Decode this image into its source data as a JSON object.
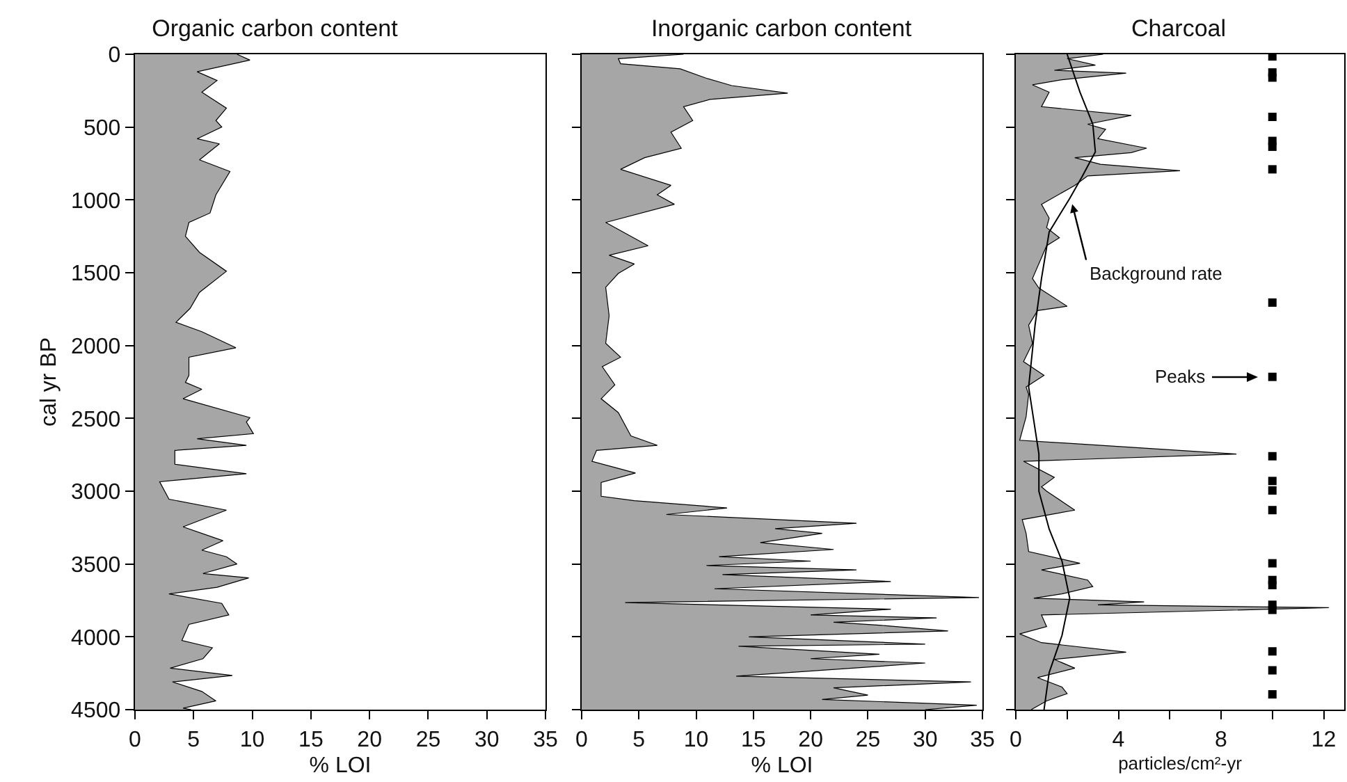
{
  "chart_data": [
    {
      "type": "area",
      "title": "Organic carbon content",
      "xlabel": "% LOI",
      "ylabel": "cal yr BP",
      "orientation": "horizontal",
      "xlim": [
        0,
        35
      ],
      "xticks": [
        0,
        5,
        10,
        15,
        20,
        25,
        30,
        35
      ],
      "ylim": [
        4500,
        0
      ],
      "yticks": [
        0,
        500,
        1000,
        1500,
        2000,
        2500,
        3000,
        3500,
        4000,
        4500
      ],
      "grid": false,
      "legend": false,
      "series": [
        {
          "color": "#a6a6a6",
          "x": [
            0,
            40,
            120,
            180,
            260,
            370,
            455,
            500,
            580,
            615,
            725,
            805,
            965,
            1090,
            1155,
            1250,
            1360,
            1490,
            1635,
            1745,
            1840,
            1905,
            2015,
            2080,
            2205,
            2253,
            2300,
            2365,
            2495,
            2525,
            2605,
            2640,
            2685,
            2720,
            2815,
            2880,
            2935,
            3055,
            3130,
            3245,
            3340,
            3405,
            3450,
            3500,
            3565,
            3595,
            3660,
            3705,
            3770,
            3850,
            3915,
            4025,
            4075,
            4150,
            4215,
            4265,
            4310,
            4375,
            4440,
            4490,
            4500
          ],
          "values": [
            8.7,
            9.8,
            5.3,
            7.0,
            5.7,
            7.8,
            6.9,
            7.4,
            5.3,
            7.2,
            5.5,
            8.1,
            6.9,
            6.4,
            4.6,
            4.3,
            5.5,
            7.8,
            5.5,
            4.7,
            3.5,
            5.7,
            8.6,
            4.6,
            4.6,
            4.3,
            5.7,
            4.1,
            9.8,
            9.5,
            10.1,
            5.3,
            9.5,
            3.4,
            3.4,
            9.5,
            2.1,
            2.9,
            7.8,
            4.1,
            7.5,
            5.7,
            7.8,
            8.7,
            5.8,
            9.7,
            7.0,
            2.9,
            7.4,
            8.0,
            4.6,
            4.0,
            6.6,
            5.8,
            3.0,
            8.3,
            3.2,
            5.7,
            6.9,
            4.1,
            4.8
          ]
        }
      ]
    },
    {
      "type": "area",
      "title": "Inorganic carbon content",
      "xlabel": "% LOI",
      "orientation": "horizontal",
      "xlim": [
        0,
        35
      ],
      "xticks": [
        0,
        5,
        10,
        15,
        20,
        25,
        30,
        35
      ],
      "ylim": [
        4500,
        0
      ],
      "yticks": [
        0,
        500,
        1000,
        1500,
        2000,
        2500,
        3000,
        3500,
        4000,
        4500
      ],
      "tick_labels": "x",
      "grid": false,
      "legend": false,
      "series": [
        {
          "color": "#a6a6a6",
          "x": [
            0,
            30,
            65,
            100,
            165,
            215,
            267,
            310,
            360,
            455,
            535,
            645,
            710,
            790,
            900,
            965,
            1030,
            1155,
            1315,
            1380,
            1440,
            1505,
            1600,
            1795,
            1985,
            2080,
            2145,
            2270,
            2365,
            2460,
            2620,
            2685,
            2720,
            2795,
            2875,
            2940,
            3035,
            3065,
            3115,
            3160,
            3220,
            3257,
            3290,
            3353,
            3400,
            3450,
            3480,
            3510,
            3540,
            3573,
            3620,
            3670,
            3730,
            3765,
            3810,
            3850,
            3870,
            3900,
            3920,
            3960,
            4000,
            4050,
            4065,
            4120,
            4150,
            4180,
            4270,
            4310,
            4350,
            4400,
            4430,
            4470,
            4500
          ],
          "values": [
            8.9,
            3.2,
            3.4,
            8.6,
            10.9,
            13.1,
            18,
            11.2,
            8.9,
            9.7,
            7.8,
            8.7,
            5.5,
            3.4,
            7.8,
            6.6,
            8.1,
            2.1,
            5.8,
            2.4,
            4.6,
            3.2,
            2.1,
            2.4,
            2.1,
            3.4,
            1.8,
            2.9,
            1.7,
            3.2,
            4.3,
            6.6,
            1.3,
            0.9,
            4.7,
            1.7,
            1.7,
            4.6,
            12.7,
            7.4,
            24,
            16.9,
            21,
            15.6,
            22,
            12.0,
            20,
            10.9,
            24,
            12.3,
            27,
            11.6,
            34.7,
            3.8,
            27,
            20,
            31,
            22,
            26,
            32,
            14.6,
            30,
            13.7,
            26,
            20,
            30,
            13.5,
            34,
            22,
            25,
            21,
            34.5,
            30
          ]
        }
      ]
    },
    {
      "type": "area",
      "title": "Charcoal",
      "xlabel": "particles/cm²-yr",
      "orientation": "horizontal",
      "xlim": [
        0,
        12.8
      ],
      "xticks": [
        0,
        {
          "value": 2,
          "label": null
        },
        4,
        {
          "value": 6,
          "label": null
        },
        8,
        {
          "value": 10,
          "label": null
        },
        12
      ],
      "ylim": [
        4500,
        0
      ],
      "yticks": [
        0,
        500,
        1000,
        1500,
        2000,
        2500,
        3000,
        3500,
        4000,
        4500
      ],
      "tick_labels": "x",
      "grid": false,
      "legend": false,
      "annotations": [
        {
          "text": "Background rate",
          "x": 2.2,
          "y": 1030
        },
        "Peaks"
      ],
      "series": [
        {
          "color": "#a6a6a6",
          "x": [
            0,
            30,
            75,
            110,
            130,
            175,
            210,
            260,
            360,
            420,
            480,
            515,
            580,
            645,
            675,
            710,
            755,
            800,
            835,
            900,
            1030,
            1125,
            1190,
            1260,
            1315,
            1540,
            1605,
            1730,
            1760,
            1860,
            1985,
            2110,
            2205,
            2285,
            2335,
            2490,
            2650,
            2745,
            2795,
            2905,
            2970,
            3000,
            3130,
            3195,
            3290,
            3415,
            3495,
            3540,
            3610,
            3655,
            3705,
            3735,
            3760,
            3780,
            3800,
            3850,
            3930,
            3980,
            4040,
            4105,
            4155,
            4215,
            4280,
            4345,
            4390,
            4440,
            4500
          ],
          "values": [
            3.4,
            2.0,
            3.1,
            1.5,
            4.3,
            1.8,
            0.65,
            1.3,
            1.0,
            4.5,
            2.8,
            3.5,
            3.2,
            5.1,
            4.5,
            2.3,
            3.3,
            6.4,
            2.8,
            2.3,
            1.0,
            1.3,
            1.2,
            1.7,
            1.2,
            0.65,
            0.9,
            2.0,
            0.85,
            0.5,
            0.65,
            0.3,
            1.1,
            0.4,
            0.5,
            0.4,
            0.15,
            8.6,
            0.3,
            1.5,
            1.0,
            1.2,
            2.3,
            0.25,
            0.4,
            0.5,
            2.5,
            1.0,
            2.8,
            3.0,
            1.8,
            0.7,
            5.0,
            3.2,
            12.2,
            1.0,
            1.2,
            0.15,
            1.0,
            4.3,
            1.5,
            2.3,
            0.85,
            1.8,
            2.0,
            1.2,
            0.6
          ]
        },
        {
          "type": "line",
          "color": "#000000",
          "x": [
            0,
            260,
            480,
            670,
            835,
            990,
            1220,
            1540,
            1860,
            2285,
            2745,
            3000,
            3260,
            3480,
            3735,
            3990,
            4245,
            4500
          ],
          "values": [
            2.0,
            2.5,
            3.0,
            3.1,
            2.6,
            2.1,
            1.3,
            1.0,
            0.75,
            0.5,
            0.9,
            0.9,
            1.3,
            1.8,
            2.1,
            1.8,
            1.3,
            1.1
          ]
        },
        {
          "type": "scatter",
          "color": "#000000",
          "marker": "square",
          "x": [
            15,
            125,
            160,
            430,
            595,
            635,
            790,
            1705,
            2215,
            2760,
            2930,
            2995,
            3130,
            3495,
            3610,
            3645,
            3780,
            3815,
            4100,
            4230,
            4395
          ],
          "values": [
            10,
            10,
            10,
            10,
            10,
            10,
            10,
            10,
            10,
            10,
            10,
            10,
            10,
            10,
            10,
            10,
            10,
            10,
            10,
            10,
            10
          ]
        }
      ]
    }
  ]
}
